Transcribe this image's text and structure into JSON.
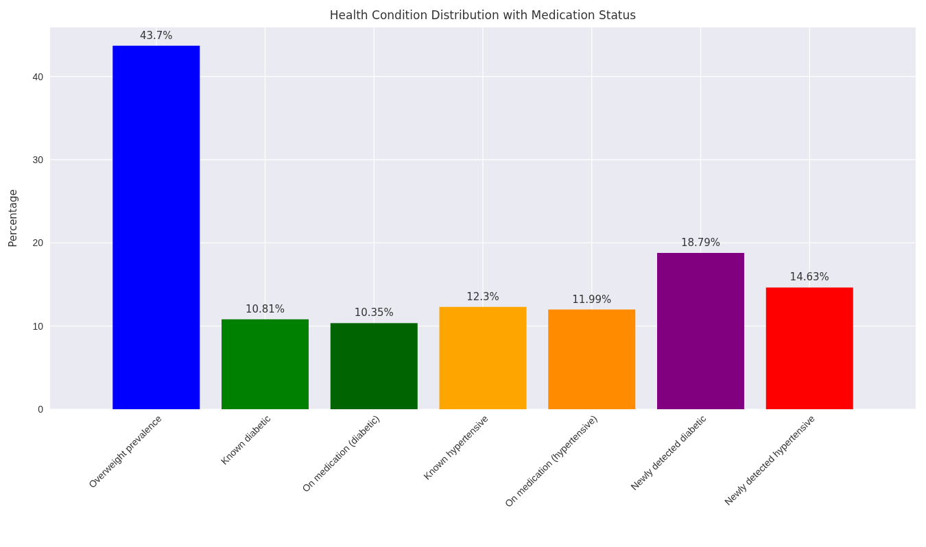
{
  "chart_data": {
    "type": "bar",
    "title": "Health Condition Distribution with Medication Status",
    "ylabel": "Percentage",
    "categories": [
      "Overweight prevalence",
      "Known diabetic",
      "On medication (diabetic)",
      "Known hypertensive",
      "On medication (hypertensive)",
      "Newly detected diabetic",
      "Newly detected hypertensive"
    ],
    "values": [
      43.7,
      10.81,
      10.35,
      12.3,
      11.99,
      18.79,
      14.63
    ],
    "value_labels": [
      "43.7%",
      "10.81%",
      "10.35%",
      "12.3%",
      "11.99%",
      "18.79%",
      "14.63%"
    ],
    "colors": [
      "#0000ff",
      "#008000",
      "#006400",
      "#ffa500",
      "#ff8c00",
      "#800080",
      "#ff0000"
    ],
    "ylim": [
      0,
      45.9
    ],
    "yticks": [
      0,
      10,
      20,
      30,
      40
    ],
    "grid": true
  }
}
